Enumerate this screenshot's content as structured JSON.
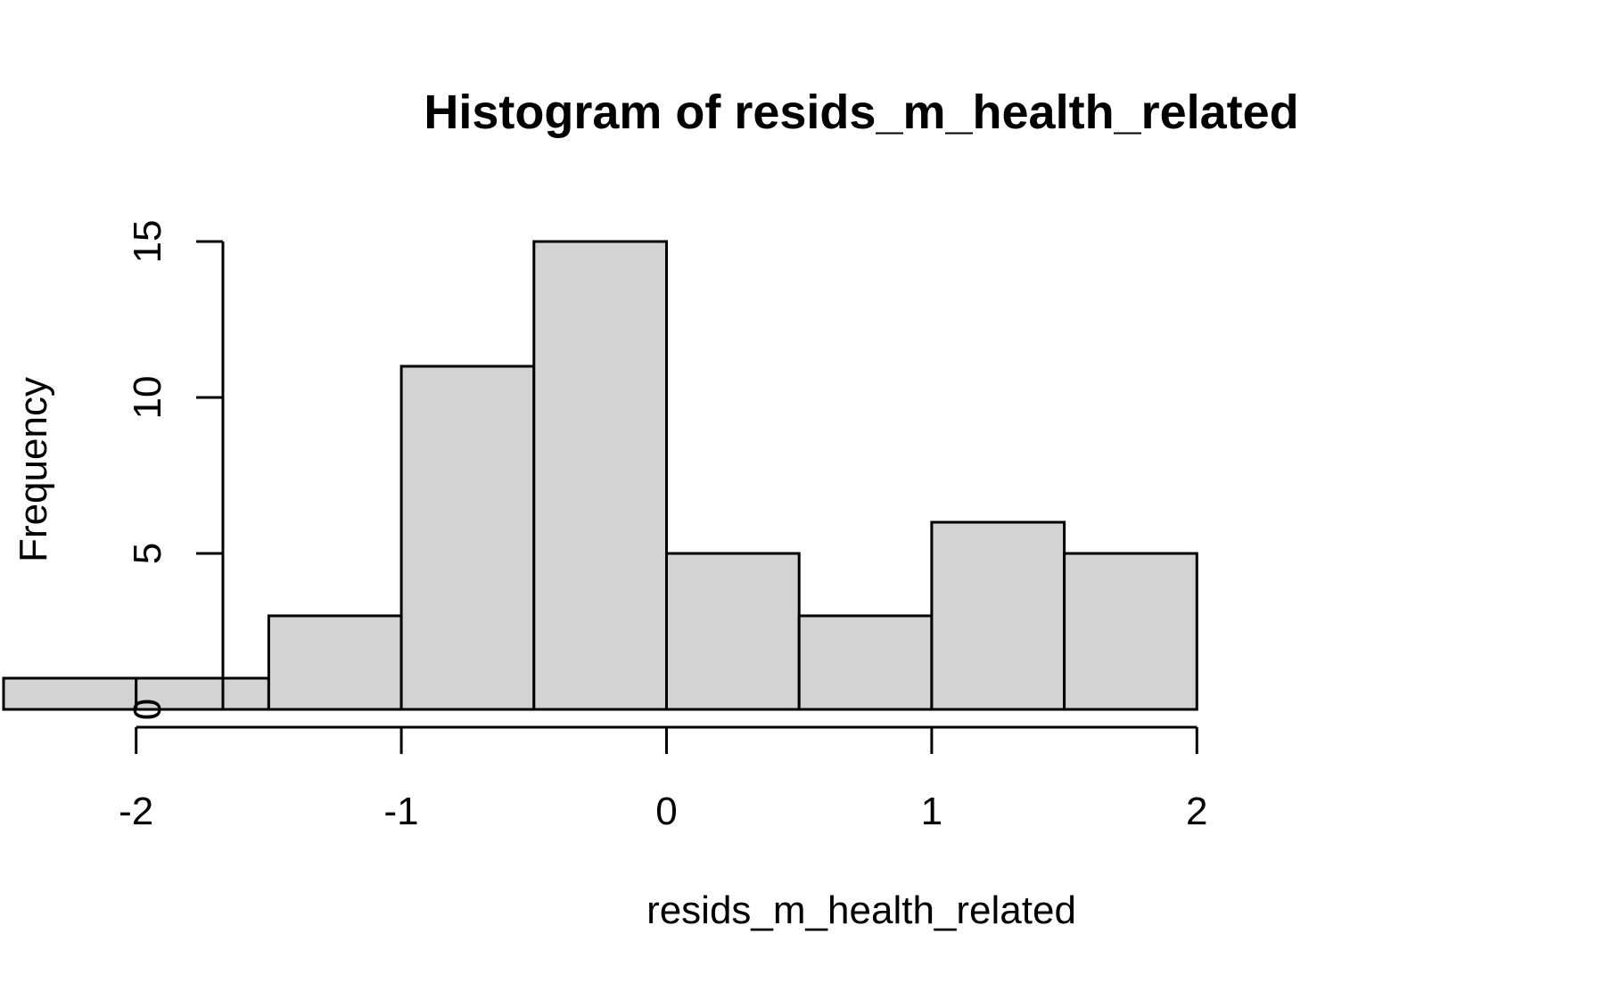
{
  "chart_data": {
    "type": "bar",
    "title": "Histogram of resids_m_health_related",
    "xlabel": "resids_m_health_related",
    "ylabel": "Frequency",
    "bins": [
      {
        "x0": -2.5,
        "x1": -2.0,
        "count": 1
      },
      {
        "x0": -2.0,
        "x1": -1.5,
        "count": 1
      },
      {
        "x0": -1.5,
        "x1": -1.0,
        "count": 3
      },
      {
        "x0": -1.0,
        "x1": -0.5,
        "count": 11
      },
      {
        "x0": -0.5,
        "x1": 0.0,
        "count": 15
      },
      {
        "x0": 0.0,
        "x1": 0.5,
        "count": 5
      },
      {
        "x0": 0.5,
        "x1": 1.0,
        "count": 3
      },
      {
        "x0": 1.0,
        "x1": 1.5,
        "count": 6
      },
      {
        "x0": 1.5,
        "x1": 2.0,
        "count": 5
      }
    ],
    "xticks": [
      -2,
      -1,
      0,
      1,
      2
    ],
    "xtick_labels": [
      "-2",
      "-1",
      "0",
      "1",
      "2"
    ],
    "yticks": [
      0,
      5,
      10,
      15
    ],
    "ytick_labels": [
      "0",
      "5",
      "10",
      "15"
    ],
    "xlim": [
      -2.5,
      2.0
    ],
    "ylim": [
      0,
      15
    ],
    "grid": false,
    "bar_fill": "#d3d3d3",
    "bar_stroke": "#000000"
  }
}
